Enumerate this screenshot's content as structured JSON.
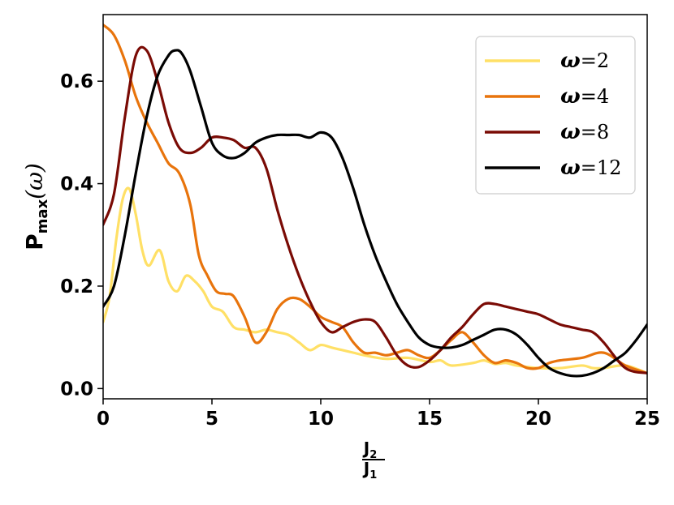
{
  "chart_data": {
    "type": "line",
    "xlim": [
      0,
      25
    ],
    "ylim": [
      -0.02,
      0.73
    ],
    "xticks": [
      "0",
      "5",
      "10",
      "15",
      "20",
      "25"
    ],
    "yticks": [
      "0.0",
      "0.2",
      "0.4",
      "0.6"
    ],
    "xlabel": {
      "num": "J",
      "num_sub": "2",
      "den": "J",
      "den_sub": "1"
    },
    "ylabel": {
      "main": "P",
      "sub": "max",
      "arg": "(ω)"
    },
    "legend_position": "top-right",
    "grid": false,
    "series": [
      {
        "symbol": "ω",
        "value_text": "=2",
        "color": "#ffe066",
        "x": [
          0,
          0.3,
          0.6,
          0.9,
          1.2,
          1.5,
          1.8,
          2.1,
          2.6,
          3.0,
          3.4,
          3.8,
          4.2,
          4.6,
          5.0,
          5.5,
          6.0,
          6.5,
          7.0,
          7.5,
          8.0,
          8.5,
          9.0,
          9.5,
          10.0,
          10.5,
          11.0,
          11.5,
          12.0,
          13.0,
          14.0,
          15.0,
          15.5,
          16.0,
          17.0,
          17.5,
          18.0,
          18.5,
          19.0,
          20.0,
          21.0,
          22.0,
          22.5,
          23.0,
          24.0,
          25.0
        ],
        "y": [
          0.13,
          0.18,
          0.29,
          0.37,
          0.39,
          0.34,
          0.27,
          0.24,
          0.27,
          0.21,
          0.19,
          0.22,
          0.21,
          0.19,
          0.16,
          0.15,
          0.12,
          0.115,
          0.11,
          0.115,
          0.11,
          0.105,
          0.09,
          0.075,
          0.085,
          0.08,
          0.075,
          0.07,
          0.065,
          0.058,
          0.06,
          0.052,
          0.055,
          0.045,
          0.05,
          0.055,
          0.048,
          0.05,
          0.045,
          0.04,
          0.04,
          0.045,
          0.04,
          0.04,
          0.045,
          0.03
        ]
      },
      {
        "symbol": "ω",
        "value_text": "=4",
        "color": "#e8740c",
        "x": [
          0,
          0.5,
          1.0,
          1.5,
          2.0,
          2.5,
          3.0,
          3.5,
          4.0,
          4.4,
          4.8,
          5.2,
          5.6,
          6.0,
          6.5,
          7.0,
          7.5,
          8.0,
          8.5,
          9.0,
          9.5,
          10.0,
          10.5,
          11.0,
          11.5,
          12.0,
          12.5,
          13.0,
          13.5,
          14.0,
          14.5,
          15.0,
          15.5,
          16.0,
          16.5,
          17.0,
          17.5,
          18.0,
          18.5,
          19.0,
          19.5,
          20.0,
          20.5,
          21.0,
          22.0,
          23.0,
          24.0,
          25.0
        ],
        "y": [
          0.71,
          0.69,
          0.64,
          0.57,
          0.52,
          0.48,
          0.44,
          0.42,
          0.36,
          0.26,
          0.22,
          0.19,
          0.185,
          0.18,
          0.14,
          0.09,
          0.11,
          0.155,
          0.175,
          0.175,
          0.16,
          0.14,
          0.13,
          0.12,
          0.09,
          0.07,
          0.07,
          0.065,
          0.07,
          0.075,
          0.065,
          0.06,
          0.075,
          0.095,
          0.11,
          0.09,
          0.065,
          0.05,
          0.055,
          0.05,
          0.04,
          0.04,
          0.05,
          0.055,
          0.06,
          0.07,
          0.045,
          0.03
        ]
      },
      {
        "symbol": "ω",
        "value_text": "=8",
        "color": "#7a0b05",
        "x": [
          0,
          0.5,
          1.0,
          1.5,
          2.0,
          2.5,
          3.0,
          3.5,
          4.0,
          4.5,
          5.0,
          5.5,
          6.0,
          6.5,
          7.0,
          7.5,
          8.0,
          8.5,
          9.0,
          9.5,
          10.0,
          10.5,
          11.0,
          11.5,
          12.0,
          12.5,
          13.0,
          13.5,
          14.0,
          14.5,
          15.0,
          15.5,
          16.0,
          16.5,
          17.0,
          17.5,
          18.0,
          18.5,
          19.0,
          19.5,
          20.0,
          20.5,
          21.0,
          21.5,
          22.0,
          22.5,
          23.0,
          24.0,
          25.0
        ],
        "y": [
          0.32,
          0.38,
          0.53,
          0.65,
          0.66,
          0.6,
          0.52,
          0.47,
          0.46,
          0.47,
          0.49,
          0.49,
          0.485,
          0.47,
          0.47,
          0.43,
          0.35,
          0.28,
          0.22,
          0.17,
          0.13,
          0.11,
          0.12,
          0.13,
          0.135,
          0.13,
          0.1,
          0.065,
          0.045,
          0.042,
          0.055,
          0.075,
          0.1,
          0.12,
          0.145,
          0.165,
          0.165,
          0.16,
          0.155,
          0.15,
          0.145,
          0.135,
          0.125,
          0.12,
          0.115,
          0.11,
          0.09,
          0.04,
          0.03
        ]
      },
      {
        "symbol": "ω",
        "value_text": "=12",
        "color": "#000000",
        "x": [
          0,
          0.5,
          1.0,
          1.5,
          2.0,
          2.5,
          3.0,
          3.3,
          3.6,
          4.0,
          4.5,
          5.0,
          5.5,
          6.0,
          6.5,
          7.0,
          7.5,
          8.0,
          8.5,
          9.0,
          9.5,
          10.0,
          10.5,
          11.0,
          11.5,
          12.0,
          12.5,
          13.0,
          13.5,
          14.0,
          14.5,
          15.0,
          15.5,
          16.0,
          16.5,
          17.0,
          17.5,
          18.0,
          18.5,
          19.0,
          19.5,
          20.0,
          20.5,
          21.0,
          21.5,
          22.0,
          22.5,
          23.0,
          23.5,
          24.0,
          24.5,
          25.0
        ],
        "y": [
          0.16,
          0.2,
          0.3,
          0.42,
          0.53,
          0.61,
          0.65,
          0.66,
          0.655,
          0.62,
          0.55,
          0.48,
          0.455,
          0.45,
          0.46,
          0.48,
          0.49,
          0.495,
          0.495,
          0.495,
          0.49,
          0.5,
          0.49,
          0.45,
          0.39,
          0.32,
          0.26,
          0.21,
          0.165,
          0.13,
          0.1,
          0.085,
          0.08,
          0.08,
          0.085,
          0.095,
          0.105,
          0.115,
          0.115,
          0.105,
          0.085,
          0.06,
          0.04,
          0.03,
          0.025,
          0.025,
          0.03,
          0.04,
          0.055,
          0.07,
          0.095,
          0.125
        ]
      }
    ]
  }
}
